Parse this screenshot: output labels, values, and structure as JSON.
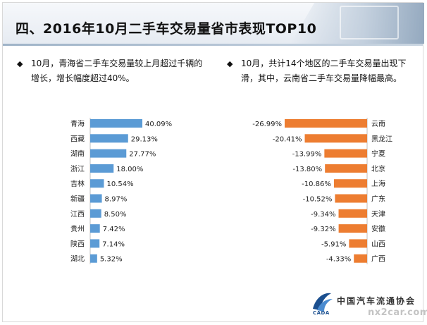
{
  "page": {
    "title": "四、2016年10月二手车交易量省市表现TOP10"
  },
  "notes": {
    "left": {
      "bullet": "◆",
      "text": "10月，青海省二手车交易量较上月超过千辆的增长，增长幅度超过40%。"
    },
    "right": {
      "bullet": "◆",
      "text": "10月，共计14个地区的二手车交易量出现下滑，其中，云南省二手车交易量降幅最高。"
    }
  },
  "footer": {
    "logo_text": "中国汽车流通协会",
    "logo_sub": "CADA",
    "watermark": "nx2car.com"
  },
  "colors": {
    "increase_bar": "#5b9bd5",
    "decrease_bar": "#ed7d31"
  },
  "chart_data": [
    {
      "type": "bar",
      "orientation": "horizontal",
      "categories": [
        "青海",
        "西藏",
        "湖南",
        "浙江",
        "吉林",
        "新疆",
        "江西",
        "贵州",
        "陕西",
        "湖北"
      ],
      "values": [
        40.09,
        29.13,
        27.77,
        18.0,
        10.54,
        8.97,
        8.5,
        7.42,
        7.14,
        5.32
      ],
      "labels": [
        "40.09%",
        "29.13%",
        "27.77%",
        "18.00%",
        "10.54%",
        "8.97%",
        "8.50%",
        "7.42%",
        "7.14%",
        "5.32%"
      ],
      "title": "",
      "xlabel": "",
      "ylabel": "",
      "xlim": [
        0,
        45
      ],
      "grid": false,
      "color": "#5b9bd5"
    },
    {
      "type": "bar",
      "orientation": "horizontal",
      "categories": [
        "云南",
        "黑龙江",
        "宁夏",
        "北京",
        "上海",
        "广东",
        "天津",
        "安徽",
        "山西",
        "广西"
      ],
      "values": [
        -26.99,
        -20.41,
        -13.99,
        -13.8,
        -10.86,
        -10.52,
        -9.34,
        -9.32,
        -5.91,
        -4.33
      ],
      "labels": [
        "-26.99%",
        "-20.41%",
        "-13.99%",
        "-13.80%",
        "-10.86%",
        "-10.52%",
        "-9.34%",
        "-9.32%",
        "-5.91%",
        "-4.33%"
      ],
      "title": "",
      "xlabel": "",
      "ylabel": "",
      "xlim": [
        -30,
        0
      ],
      "grid": false,
      "color": "#ed7d31"
    }
  ]
}
